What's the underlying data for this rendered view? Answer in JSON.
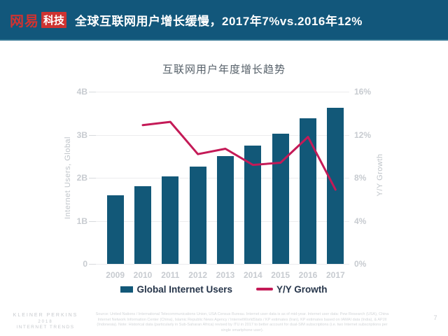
{
  "header": {
    "logo_brand": "网易",
    "logo_suffix": "科技",
    "title": "全球互联网用户增长缓慢，2017年7%vs.2016年12%",
    "bg_color": "#12577b",
    "logo_red": "#cf3331"
  },
  "chart_data": {
    "type": "bar",
    "title": "互联网用户年度增长趋势",
    "categories": [
      "2009",
      "2010",
      "2011",
      "2012",
      "2013",
      "2014",
      "2015",
      "2016",
      "2017"
    ],
    "series": [
      {
        "name": "Global Internet Users",
        "render": "bar",
        "axis": "left",
        "unit": "B",
        "color": "#125878",
        "values": [
          1.59,
          1.8,
          2.03,
          2.26,
          2.5,
          2.75,
          3.02,
          3.38,
          3.63
        ]
      },
      {
        "name": "Y/Y Growth",
        "render": "line",
        "axis": "right",
        "unit": "%",
        "color": "#c41a57",
        "values": [
          null,
          12.9,
          13.2,
          10.2,
          10.7,
          9.2,
          9.4,
          11.8,
          6.9
        ]
      }
    ],
    "left_axis": {
      "label": "Internet Users, Global",
      "min": 0,
      "max": 4,
      "ticks": [
        "4B",
        "3B",
        "2B",
        "1B",
        "0"
      ]
    },
    "right_axis": {
      "label": "Y/Y Growth",
      "min": 0,
      "max": 16,
      "ticks": [
        "16%",
        "12%",
        "8%",
        "4%",
        "0%"
      ]
    },
    "grid": true,
    "legend_position": "bottom"
  },
  "footer": {
    "brand_line1": "KLEINER PERKINS",
    "brand_line2": "2018",
    "brand_line3": "INTERNET TRENDS",
    "source_note": "Source: United Nations / International Telecommunications Union, USA Census Bureau. Internet user data is as of mid-year. Internet user data: Pew Research (USA), China Internet Network Information Center (China), Islamic Republic News Agency / InternetWorldStats / KP estimates (Iran), KP estimates based on IAMAI data (India), & APJII (Indonesia).  Note: Historical data (particularly in Sub-Saharan Africa) revised by ITU in 2017 to better account for dual-SIM subscriptions (i.e. two Internet subscriptions per single smartphone user).",
    "page_number": "7"
  }
}
